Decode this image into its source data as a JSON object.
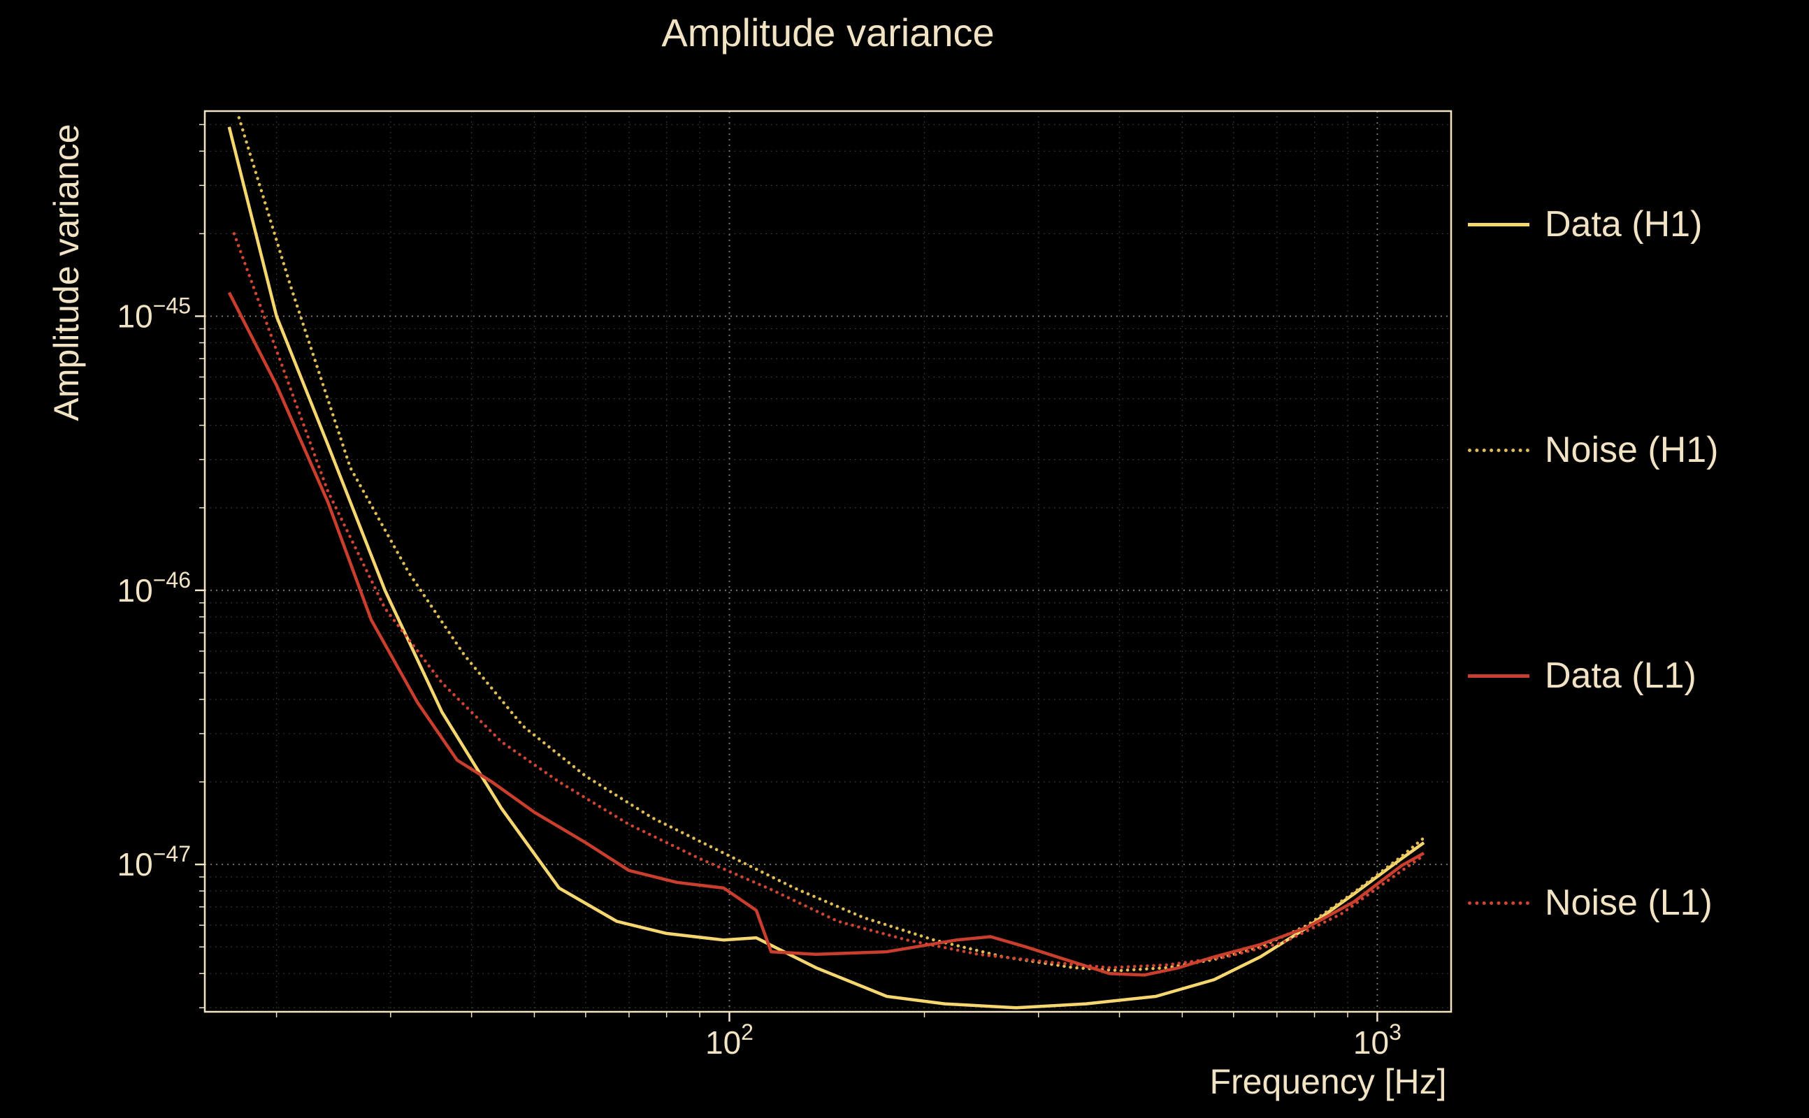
{
  "chart_data": {
    "type": "line",
    "title": "Amplitude variance",
    "xlabel": "Frequency [Hz]",
    "ylabel": "Amplitude variance",
    "xscale": "log",
    "yscale": "log",
    "xlim": [
      15.5,
      1300
    ],
    "ylim": [
      2.9e-48,
      5.6e-45
    ],
    "grid": true,
    "legend_position": "right-outside",
    "colors": {
      "background": "#000000",
      "text": "#f1e3c3",
      "grid": "#f1e3c3",
      "spine": "#f1e3c3"
    },
    "x_ticks": [
      {
        "value": 100,
        "base": "10",
        "exp": "2"
      },
      {
        "value": 1000,
        "base": "10",
        "exp": "3"
      }
    ],
    "y_ticks": [
      {
        "value": 1e-45,
        "base": "10",
        "exp": "−45"
      },
      {
        "value": 1e-46,
        "base": "10",
        "exp": "−46"
      },
      {
        "value": 1e-47,
        "base": "10",
        "exp": "−47"
      }
    ],
    "series": [
      {
        "name": "Data (H1)",
        "color": "#f6d66f",
        "style": "solid",
        "points": [
          [
            16.9,
            4.9e-45
          ],
          [
            20,
            1e-45
          ],
          [
            24,
            3.4e-46
          ],
          [
            29.4,
            1e-46
          ],
          [
            36,
            3.6e-47
          ],
          [
            44.5,
            1.6e-47
          ],
          [
            54.6,
            8.2e-48
          ],
          [
            67,
            6.2e-48
          ],
          [
            80,
            5.6e-48
          ],
          [
            98,
            5.3e-48
          ],
          [
            110,
            5.4e-48
          ],
          [
            136,
            4.2e-48
          ],
          [
            175,
            3.3e-48
          ],
          [
            215,
            3.1e-48
          ],
          [
            277,
            3e-48
          ],
          [
            355,
            3.1e-48
          ],
          [
            455,
            3.3e-48
          ],
          [
            560,
            3.8e-48
          ],
          [
            660,
            4.6e-48
          ],
          [
            780,
            5.9e-48
          ],
          [
            920,
            7.8e-48
          ],
          [
            1090,
            1.05e-47
          ],
          [
            1180,
            1.2e-47
          ]
        ]
      },
      {
        "name": "Noise (H1)",
        "color": "#e0bd55",
        "style": "dotted",
        "points": [
          [
            17.5,
            5.3e-45
          ],
          [
            21,
            1.3e-45
          ],
          [
            26,
            2.8e-46
          ],
          [
            32,
            1.16e-46
          ],
          [
            39,
            5.8e-47
          ],
          [
            48,
            3.2e-47
          ],
          [
            60,
            2.1e-47
          ],
          [
            76,
            1.48e-47
          ],
          [
            98,
            1.1e-47
          ],
          [
            126,
            8.2e-48
          ],
          [
            161,
            6.4e-48
          ],
          [
            207,
            5.3e-48
          ],
          [
            265,
            4.6e-48
          ],
          [
            340,
            4.2e-48
          ],
          [
            400,
            4.1e-48
          ],
          [
            474,
            4.2e-48
          ],
          [
            560,
            4.5e-48
          ],
          [
            660,
            5e-48
          ],
          [
            780,
            6e-48
          ],
          [
            920,
            7.9e-48
          ],
          [
            1090,
            1.07e-47
          ],
          [
            1180,
            1.25e-47
          ]
        ]
      },
      {
        "name": "Data (L1)",
        "color": "#ca3e2d",
        "style": "solid",
        "points": [
          [
            16.9,
            1.22e-45
          ],
          [
            20,
            5.6e-46
          ],
          [
            24,
            2.1e-46
          ],
          [
            28,
            7.8e-47
          ],
          [
            33,
            3.9e-47
          ],
          [
            38,
            2.4e-47
          ],
          [
            43,
            2e-47
          ],
          [
            50,
            1.55e-47
          ],
          [
            60,
            1.2e-47
          ],
          [
            70,
            9.5e-48
          ],
          [
            83,
            8.6e-48
          ],
          [
            98,
            8.2e-48
          ],
          [
            110,
            6.8e-48
          ],
          [
            116,
            4.8e-48
          ],
          [
            136,
            4.7e-48
          ],
          [
            175,
            4.8e-48
          ],
          [
            224,
            5.3e-48
          ],
          [
            253,
            5.45e-48
          ],
          [
            287,
            5e-48
          ],
          [
            340,
            4.4e-48
          ],
          [
            386,
            4e-48
          ],
          [
            437,
            3.95e-48
          ],
          [
            494,
            4.2e-48
          ],
          [
            560,
            4.6e-48
          ],
          [
            660,
            5.1e-48
          ],
          [
            780,
            5.9e-48
          ],
          [
            920,
            7.3e-48
          ],
          [
            1090,
            9.9e-48
          ],
          [
            1180,
            1.1e-47
          ]
        ]
      },
      {
        "name": "Noise (L1)",
        "color": "#d04434",
        "style": "dotted",
        "points": [
          [
            17.2,
            2e-45
          ],
          [
            20,
            7.5e-46
          ],
          [
            24,
            2.3e-46
          ],
          [
            29.4,
            8.6e-47
          ],
          [
            36,
            4.6e-47
          ],
          [
            44.5,
            2.8e-47
          ],
          [
            54.6,
            2e-47
          ],
          [
            70,
            1.4e-47
          ],
          [
            90,
            1.05e-47
          ],
          [
            116,
            8.1e-48
          ],
          [
            147,
            6.2e-48
          ],
          [
            188,
            5.3e-48
          ],
          [
            242,
            4.7e-48
          ],
          [
            312,
            4.4e-48
          ],
          [
            386,
            4.2e-48
          ],
          [
            474,
            4.3e-48
          ],
          [
            585,
            4.6e-48
          ],
          [
            717,
            5.2e-48
          ],
          [
            880,
            6.6e-48
          ],
          [
            1043,
            8.8e-48
          ],
          [
            1180,
            1.08e-47
          ]
        ]
      }
    ]
  }
}
